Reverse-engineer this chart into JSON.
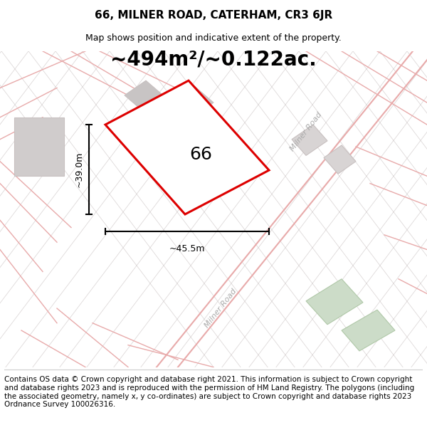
{
  "title": "66, MILNER ROAD, CATERHAM, CR3 6JR",
  "subtitle": "Map shows position and indicative extent of the property.",
  "area_text": "~494m²/~0.122ac.",
  "label_66": "66",
  "dim_width": "~45.5m",
  "dim_height": "~39.0m",
  "road_label": "Milner Road",
  "road_label2": "Milner Road",
  "footer": "Contains OS data © Crown copyright and database right 2021. This information is subject to Crown copyright and database rights 2023 and is reproduced with the permission of HM Land Registry. The polygons (including the associated geometry, namely x, y co-ordinates) are subject to Crown copyright and database rights 2023 Ordnance Survey 100026316.",
  "map_bg": "#f7f3f3",
  "road_line_color": "#e8aaaa",
  "gray_line_color": "#c8c0c0",
  "plot_color": "#dd0000",
  "plot_fill": "#ffffff",
  "green_fill": "#ccdcc8",
  "green_edge": "#b0c8a8",
  "gray_fill": "#d8d4d4",
  "gray_edge": "#b8b4b4",
  "title_fontsize": 11,
  "subtitle_fontsize": 9,
  "area_fontsize": 20,
  "label_fontsize": 18,
  "footer_fontsize": 7.5,
  "road_fontsize": 8,
  "dim_fontsize": 9
}
